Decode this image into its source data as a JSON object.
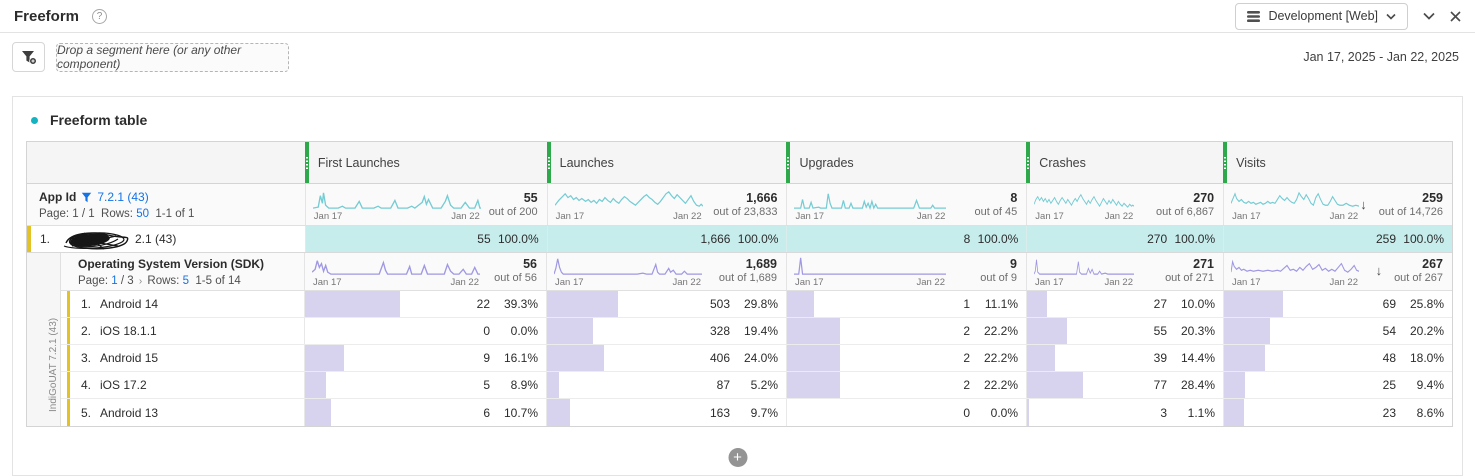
{
  "header": {
    "title": "Freeform",
    "help_icon": "?",
    "report_suite_label": "Development [Web]"
  },
  "toolbar": {
    "drop_zone_text": "Drop a segment here (or any other component)",
    "date_range": "Jan 17, 2025 - Jan 22, 2025"
  },
  "panel": {
    "title": "Freeform table"
  },
  "table": {
    "date_start": "Jan 17",
    "date_end": "Jan 22",
    "sort_arrow": "↓",
    "columns": [
      {
        "label": "First Launches"
      },
      {
        "label": "Launches"
      },
      {
        "label": "Upgrades"
      },
      {
        "label": "Crashes"
      },
      {
        "label": "Visits"
      }
    ],
    "app_id_row": {
      "dimension": "App Id",
      "filter_value": "7.2.1 (43)",
      "page_label": "Page:",
      "page_value": "1 / 1",
      "rows_label": "Rows:",
      "rows_value": "50",
      "range": "1-1 of 1",
      "totals": [
        {
          "value": "55",
          "out_of": "out of 200"
        },
        {
          "value": "1,666",
          "out_of": "out of 23,833"
        },
        {
          "value": "8",
          "out_of": "out of 45"
        },
        {
          "value": "270",
          "out_of": "out of 6,867"
        },
        {
          "value": "259",
          "out_of": "out of 14,726"
        }
      ]
    },
    "selected_row": {
      "rank": "1.",
      "name_suffix": "2.1 (43)",
      "cells": [
        {
          "value": "55",
          "pct": "100.0%"
        },
        {
          "value": "1,666",
          "pct": "100.0%"
        },
        {
          "value": "8",
          "pct": "100.0%"
        },
        {
          "value": "270",
          "pct": "100.0%"
        },
        {
          "value": "259",
          "pct": "100.0%"
        }
      ]
    },
    "breakdown": {
      "side_label": "IndiGoUAT 7.2.1 (43)",
      "title": "Operating System Version (SDK)",
      "page_label": "Page:",
      "page_value": "1",
      "page_total": "/ 3",
      "page_next_icon": "›",
      "rows_label": "Rows:",
      "rows_value": "5",
      "range": "1-5 of 14",
      "totals": [
        {
          "value": "56",
          "out_of": "out of 56"
        },
        {
          "value": "1,689",
          "out_of": "out of 1,689"
        },
        {
          "value": "9",
          "out_of": "out of 9"
        },
        {
          "value": "271",
          "out_of": "out of 271"
        },
        {
          "value": "267",
          "out_of": "out of 267"
        }
      ],
      "rows": [
        {
          "rank": "1.",
          "name": "Android 14",
          "cells": [
            {
              "value": "22",
              "pct": "39.3%"
            },
            {
              "value": "503",
              "pct": "29.8%"
            },
            {
              "value": "1",
              "pct": "11.1%"
            },
            {
              "value": "27",
              "pct": "10.0%"
            },
            {
              "value": "69",
              "pct": "25.8%"
            }
          ]
        },
        {
          "rank": "2.",
          "name": "iOS 18.1.1",
          "cells": [
            {
              "value": "0",
              "pct": "0.0%"
            },
            {
              "value": "328",
              "pct": "19.4%"
            },
            {
              "value": "2",
              "pct": "22.2%"
            },
            {
              "value": "55",
              "pct": "20.3%"
            },
            {
              "value": "54",
              "pct": "20.2%"
            }
          ]
        },
        {
          "rank": "3.",
          "name": "Android 15",
          "cells": [
            {
              "value": "9",
              "pct": "16.1%"
            },
            {
              "value": "406",
              "pct": "24.0%"
            },
            {
              "value": "2",
              "pct": "22.2%"
            },
            {
              "value": "39",
              "pct": "14.4%"
            },
            {
              "value": "48",
              "pct": "18.0%"
            }
          ]
        },
        {
          "rank": "4.",
          "name": "iOS 17.2",
          "cells": [
            {
              "value": "5",
              "pct": "8.9%"
            },
            {
              "value": "87",
              "pct": "5.2%"
            },
            {
              "value": "2",
              "pct": "22.2%"
            },
            {
              "value": "77",
              "pct": "28.4%"
            },
            {
              "value": "25",
              "pct": "9.4%"
            }
          ]
        },
        {
          "rank": "5.",
          "name": "Android 13",
          "cells": [
            {
              "value": "6",
              "pct": "10.7%"
            },
            {
              "value": "163",
              "pct": "9.7%"
            },
            {
              "value": "0",
              "pct": "0.0%"
            },
            {
              "value": "3",
              "pct": "1.1%"
            },
            {
              "value": "23",
              "pct": "8.6%"
            }
          ]
        }
      ]
    }
  },
  "colors": {
    "spark_teal": "#74ccd4",
    "spark_purple": "#9f98e3",
    "bar_fill": "#d7d3ef",
    "selected_row_bg": "#c7ecec",
    "row_marker_yellow": "#e2c227",
    "column_handle_green": "#2da84a",
    "link_blue": "#1473e6",
    "panel_dot_teal": "#17b2bf"
  },
  "footer": {
    "add_button": "+"
  }
}
